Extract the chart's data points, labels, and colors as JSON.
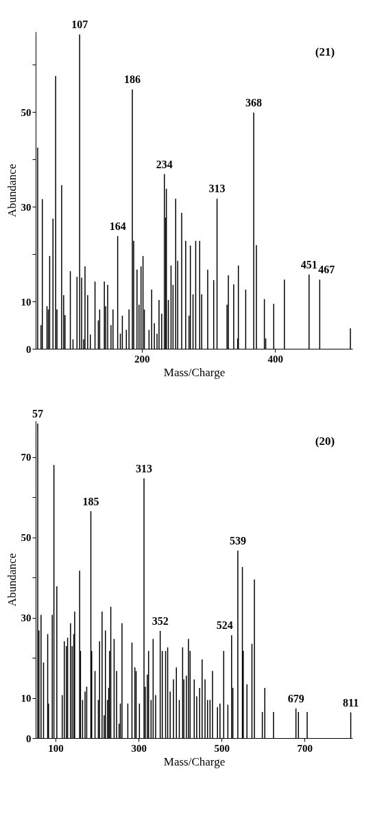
{
  "chart_data": [
    {
      "type": "bar",
      "xlabel": "Mass/Charge",
      "ylabel": "Abundance",
      "color": "#000000",
      "x": [
        44,
        49,
        51,
        58,
        60,
        62,
        67,
        71,
        73,
        80,
        83,
        85,
        93,
        97,
        103,
        107,
        110,
        113,
        115,
        119,
        123,
        130,
        135,
        137,
        144,
        146,
        149,
        154,
        157,
        164,
        168,
        171,
        177,
        181,
        186,
        188,
        193,
        196,
        199,
        202,
        204,
        211,
        215,
        219,
        223,
        226,
        230,
        234,
        236,
        237,
        240,
        244,
        247,
        251,
        254,
        260,
        266,
        271,
        273,
        277,
        281,
        287,
        290,
        299,
        308,
        313,
        328,
        330,
        338,
        344,
        345,
        356,
        368,
        372,
        384,
        386,
        398,
        414,
        451,
        467,
        513
      ],
      "values": [
        42.5,
        5,
        31.6,
        9,
        8.3,
        19.6,
        27.5,
        57.6,
        8.3,
        34.6,
        11.3,
        7.1,
        16.4,
        2,
        15.2,
        66.4,
        15,
        2,
        17.4,
        11.3,
        3,
        14.2,
        6,
        8.3,
        14.2,
        9,
        13.5,
        5,
        8.3,
        23.8,
        3.2,
        7,
        4,
        8.3,
        54.8,
        22.8,
        16.7,
        9.3,
        17.4,
        19.6,
        8.3,
        4,
        12.5,
        5.4,
        3.2,
        10.3,
        7.4,
        36.9,
        27.7,
        33.8,
        10.3,
        17.6,
        13.5,
        31.7,
        18.6,
        28.7,
        22.8,
        7,
        21.8,
        11.5,
        22.8,
        22.8,
        11.5,
        16.7,
        14.5,
        31.7,
        9.3,
        15.5,
        13.6,
        2.2,
        17.6,
        12.5,
        49.9,
        21.9,
        10.5,
        2.2,
        9.5,
        14.6,
        15.7,
        14.6,
        4.3
      ],
      "xlim": [
        41,
        516
      ],
      "ylim": [
        0,
        67
      ],
      "xticks": [
        200,
        400
      ],
      "yticks": [
        0,
        10,
        {
          "value": 20,
          "label": null
        },
        30,
        {
          "value": 40,
          "label": null
        },
        50,
        {
          "value": 60,
          "label": null
        }
      ],
      "annotations": [
        "(21)",
        {
          "text": "107",
          "x": 107,
          "y": 66.4
        },
        {
          "text": "186",
          "x": 186,
          "y": 54.8
        },
        {
          "text": "164",
          "x": 164,
          "y": 23.8
        },
        {
          "text": "234",
          "x": 234,
          "y": 36.9
        },
        {
          "text": "313",
          "x": 313,
          "y": 31.7
        },
        {
          "text": "368",
          "x": 368,
          "y": 49.9
        },
        {
          "text": "451",
          "x": 451,
          "y": 15.7
        },
        {
          "text": "467",
          "x": 467,
          "y": 14.6
        }
      ]
    },
    {
      "type": "bar",
      "xlabel": "Mass/Charge",
      "ylabel": "Abundance",
      "color": "#000000",
      "x": [
        57,
        60,
        65,
        71,
        81,
        83,
        92,
        96,
        103,
        116,
        121,
        126,
        129,
        136,
        140,
        144,
        146,
        158,
        160,
        165,
        171,
        175,
        185,
        187,
        195,
        203,
        206,
        212,
        217,
        220,
        225,
        228,
        230,
        233,
        241,
        247,
        253,
        256,
        260,
        274,
        284,
        291,
        294,
        302,
        313,
        316,
        321,
        324,
        330,
        335,
        341,
        352,
        357,
        365,
        370,
        376,
        384,
        391,
        398,
        406,
        409,
        415,
        420,
        424,
        434,
        440,
        447,
        453,
        460,
        466,
        472,
        478,
        490,
        496,
        505,
        515,
        524,
        527,
        539,
        550,
        552,
        561,
        573,
        579,
        598,
        604,
        625,
        679,
        685,
        706,
        811
      ],
      "values": [
        78.3,
        26.8,
        30.7,
        18.8,
        25.9,
        8.6,
        30.7,
        68,
        37.8,
        10.7,
        24.1,
        22.9,
        25,
        28.6,
        22.9,
        25.9,
        31.5,
        41.7,
        21.7,
        9.5,
        11.6,
        12.8,
        56.5,
        21.7,
        16.7,
        9.5,
        24.1,
        31.5,
        5.7,
        26.8,
        9.5,
        12.5,
        21.7,
        32.7,
        24.7,
        16.7,
        3.6,
        8.6,
        28.6,
        8.6,
        23.8,
        17.6,
        16.7,
        8.6,
        64.7,
        12.8,
        15.8,
        21.7,
        9.5,
        24.7,
        10.7,
        26.7,
        21.7,
        21.7,
        22.6,
        11.6,
        14.6,
        17.6,
        9.5,
        22.6,
        14.6,
        15.5,
        24.7,
        21.7,
        14.6,
        10.4,
        12.5,
        19.6,
        14.6,
        9.5,
        9.5,
        16.7,
        7.7,
        8.6,
        21.7,
        8.3,
        25.6,
        12.5,
        46.7,
        42.6,
        21.7,
        13.4,
        23.5,
        39.5,
        6.5,
        12.5,
        6.5,
        7.4,
        6.5,
        6.5,
        6.4
      ],
      "xlim": [
        52,
        815
      ],
      "ylim": [
        0,
        79
      ],
      "xticks": [
        100,
        300,
        500,
        700
      ],
      "yticks": [
        0,
        10,
        {
          "value": 20,
          "label": null
        },
        30,
        {
          "value": 40,
          "label": null
        },
        50,
        {
          "value": 60,
          "label": null
        },
        70
      ],
      "annotations": [
        "(20)",
        {
          "text": "57",
          "x": 57,
          "y": 78.3
        },
        {
          "text": "185",
          "x": 185,
          "y": 56.5
        },
        {
          "text": "313",
          "x": 313,
          "y": 64.7
        },
        {
          "text": "352",
          "x": 352,
          "y": 26.7
        },
        {
          "text": "524",
          "x": 524,
          "y": 25.6
        },
        {
          "text": "539",
          "x": 539,
          "y": 46.7
        },
        {
          "text": "679",
          "x": 679,
          "y": 7.4
        },
        {
          "text": "811",
          "x": 811,
          "y": 6.4
        }
      ]
    }
  ]
}
